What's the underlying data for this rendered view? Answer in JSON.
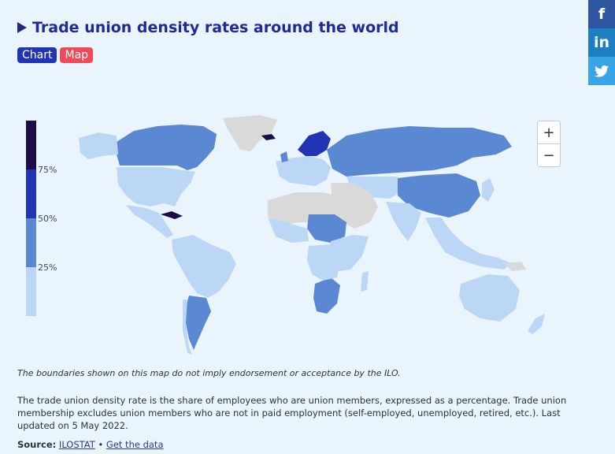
{
  "header": {
    "title": "Trade union density rates around the world"
  },
  "tabs": [
    {
      "label": "Chart"
    },
    {
      "label": "Map"
    }
  ],
  "legend": {
    "labels": [
      "75%",
      "50%",
      "25%"
    ]
  },
  "zoom": {
    "in_label": "+",
    "out_label": "−"
  },
  "social": {
    "facebook": "f",
    "linkedin": "in"
  },
  "colors": {
    "very_high": "#1a0d4a",
    "high": "#2134b4",
    "mid": "#5a88d2",
    "low": "#bcd7f5",
    "no_data": "#d9d9d9",
    "accent": "#1e2a9a",
    "map_tab": "#f04a5a"
  },
  "disclaimer": "The boundaries shown on this map do not imply endorsement or acceptance by the ILO.",
  "description": "The trade union density rate is the share of employees who are union members, expressed as a percentage. Trade union membership excludes union members who are not in paid employment (self-employed, unemployed, retired, etc.). Last updated on 5 May 2022.",
  "source": {
    "label": "Source:",
    "link1": "ILOSTAT",
    "separator": "•",
    "link2": "Get the data"
  }
}
